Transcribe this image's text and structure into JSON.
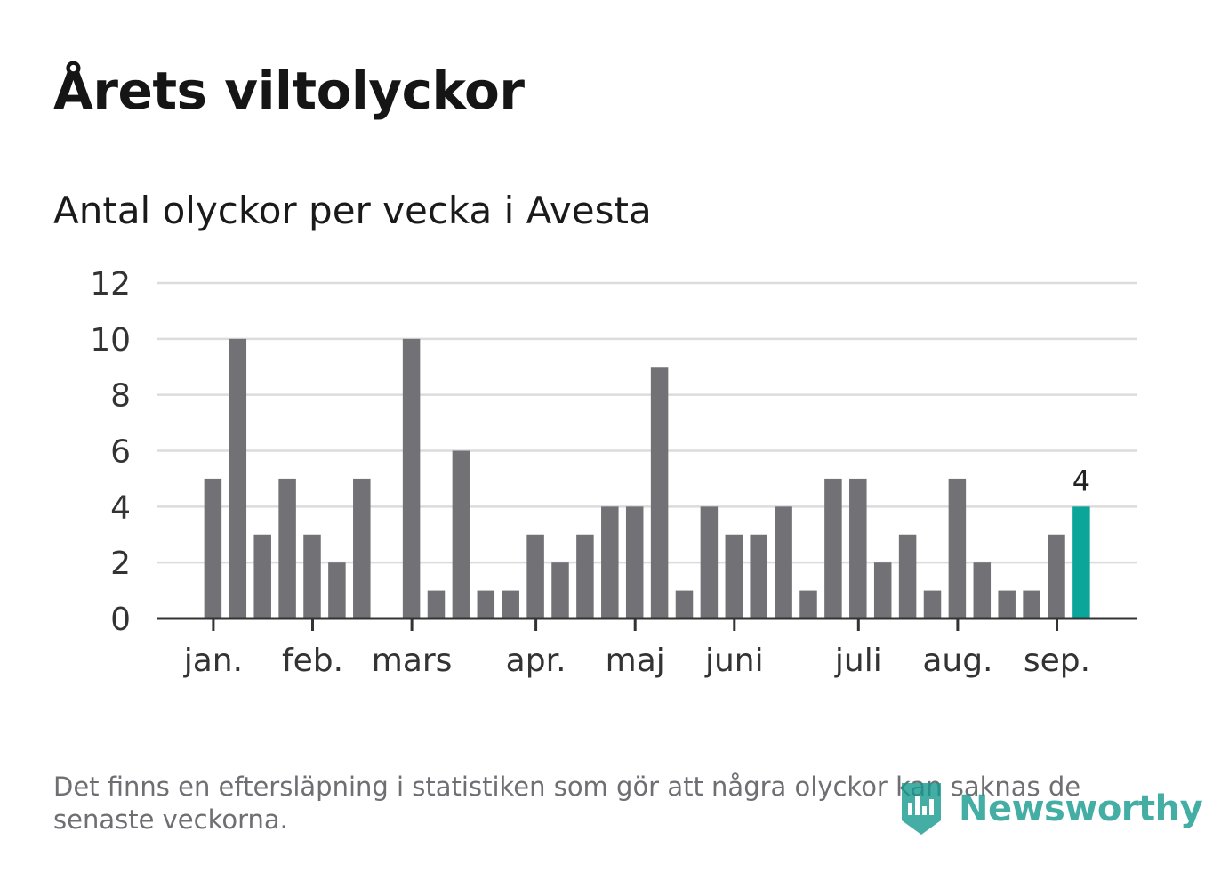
{
  "header": {
    "title": "Årets viltolyckor",
    "subtitle": "Antal olyckor per vecka i Avesta"
  },
  "footer": {
    "note": "Det finns en eftersläpning i statistiken som gör att några olyckor kan saknas de senaste veckorna.",
    "brand": "Newsworthy"
  },
  "colors": {
    "bar": "#717176",
    "highlight": "#0ba59a",
    "grid": "#dcdcdc",
    "axis": "#333333",
    "brand": "#169a8f"
  },
  "chart_data": {
    "type": "bar",
    "x_unit": "week",
    "values": [
      0,
      5,
      10,
      3,
      5,
      3,
      2,
      5,
      0,
      10,
      1,
      6,
      1,
      1,
      3,
      2,
      3,
      4,
      4,
      9,
      1,
      4,
      3,
      3,
      4,
      1,
      5,
      5,
      2,
      3,
      1,
      5,
      2,
      1,
      1,
      3,
      4
    ],
    "highlight_index": 36,
    "highlight_label": "4",
    "ylim": [
      0,
      12
    ],
    "yticks": [
      "0",
      "2",
      "4",
      "6",
      "8",
      "10",
      "12"
    ],
    "month_labels": [
      {
        "label": "jan.",
        "week": 1
      },
      {
        "label": "feb.",
        "week": 5
      },
      {
        "label": "mars",
        "week": 9
      },
      {
        "label": "apr.",
        "week": 14
      },
      {
        "label": "maj",
        "week": 18
      },
      {
        "label": "juni",
        "week": 22
      },
      {
        "label": "juli",
        "week": 27
      },
      {
        "label": "aug.",
        "week": 31
      },
      {
        "label": "sep.",
        "week": 35
      }
    ],
    "grid": true,
    "legend": "none"
  }
}
